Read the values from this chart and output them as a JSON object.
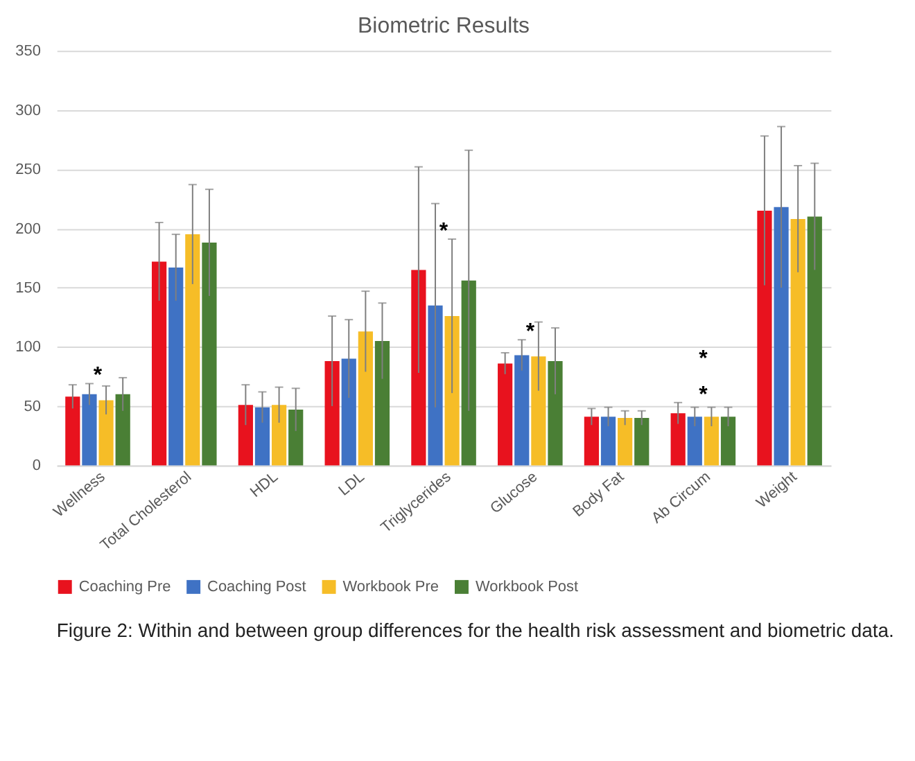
{
  "chart_data": {
    "type": "bar",
    "title": "Biometric Results",
    "categories": [
      "Wellness",
      "Total Cholesterol",
      "HDL",
      "LDL",
      "Triglycerides",
      "Glucose",
      "Body Fat",
      "Ab Circum",
      "Weight"
    ],
    "series": [
      {
        "name": "Coaching Pre",
        "color": "#e8121e",
        "values": [
          58,
          172,
          51,
          88,
          165,
          86,
          41,
          44,
          215
        ],
        "errors": [
          10,
          33,
          17,
          38,
          87,
          9,
          7,
          9,
          63
        ]
      },
      {
        "name": "Coaching Post",
        "color": "#3f72c4",
        "values": [
          60,
          167,
          49,
          90,
          135,
          93,
          41,
          41,
          218
        ],
        "errors": [
          9,
          28,
          13,
          33,
          86,
          13,
          8,
          8,
          68
        ]
      },
      {
        "name": "Workbook Pre",
        "color": "#f6bd27",
        "values": [
          55,
          195,
          51,
          113,
          126,
          92,
          40,
          41,
          208
        ],
        "errors": [
          12,
          42,
          15,
          34,
          65,
          29,
          6,
          8,
          45
        ]
      },
      {
        "name": "Workbook Post",
        "color": "#4a7f35",
        "values": [
          60,
          188,
          47,
          105,
          156,
          88,
          40,
          41,
          210
        ],
        "errors": [
          14,
          45,
          18,
          32,
          110,
          28,
          6,
          8,
          45
        ]
      }
    ],
    "ylim": [
      0,
      350
    ],
    "yticks": [
      0,
      50,
      100,
      150,
      200,
      250,
      300,
      350
    ],
    "grid": "y",
    "legend": "bottom",
    "annotations": [
      {
        "text": "*",
        "x": "Wellness",
        "y": 69
      },
      {
        "text": "*",
        "x": "Triglycerides",
        "y": 191
      },
      {
        "text": "*",
        "x": "Glucose",
        "y": 106
      },
      {
        "text": "*",
        "x": "Ab Circum",
        "y": 53
      },
      {
        "text": "*",
        "x": "Ab Circum",
        "y": 53
      },
      "Figure 2:  Within and between group differences for the health risk assessment and biometric data."
    ]
  }
}
